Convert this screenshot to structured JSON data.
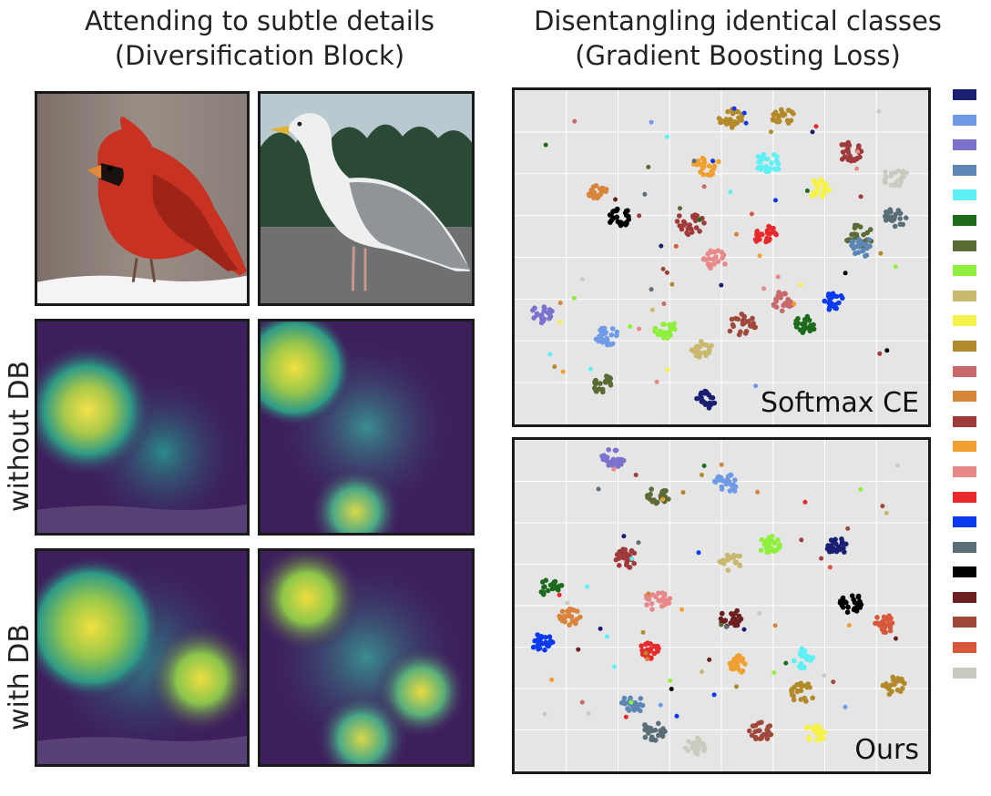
{
  "titles": {
    "left_line1": "Attending to subtle details",
    "left_line2": "(Diversification Block)",
    "right_line1": "Disentangling identical classes",
    "right_line2": "(Gradient Boosting Loss)"
  },
  "row_labels": {
    "without": "without DB",
    "with": "with DB"
  },
  "plots": {
    "top_label": "Softmax CE",
    "bottom_label": "Ours"
  },
  "colors": {
    "frame": "#1a1a1a",
    "plot_background": "#e5e5e5",
    "heatmap_base": "#3d1f5c",
    "cardinal_red": "#d43a2a",
    "gull_gray": "#8a8f94"
  },
  "legend_colors": [
    "#1b1f73",
    "#6f9be6",
    "#7a72cc",
    "#5b86b5",
    "#5ef0f5",
    "#1e6b1e",
    "#5b6b35",
    "#8ef03c",
    "#c8b96e",
    "#f6f24a",
    "#b38a2a",
    "#c86a6a",
    "#d8843a",
    "#a03a3a",
    "#f0a030",
    "#e88888",
    "#e82a2a",
    "#0a3af0",
    "#5a6e78",
    "#000000",
    "#6b1f1f",
    "#a0483a",
    "#d8583a",
    "#c8ccc0"
  ]
}
